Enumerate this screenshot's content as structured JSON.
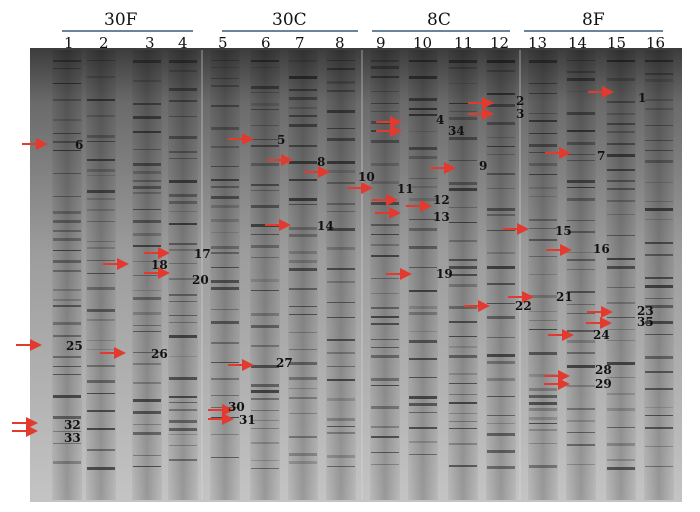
{
  "figure": {
    "groups": [
      {
        "label": "30F",
        "lanes": [
          "1",
          "2",
          "3",
          "4"
        ]
      },
      {
        "label": "30C",
        "lanes": [
          "5",
          "6",
          "7",
          "8"
        ]
      },
      {
        "label": "8C",
        "lanes": [
          "9",
          "10",
          "11",
          "12"
        ]
      },
      {
        "label": "8F",
        "lanes": [
          "13",
          "14",
          "15",
          "16"
        ]
      }
    ],
    "band_labels": [
      "1",
      "2",
      "3",
      "4",
      "5",
      "6",
      "7",
      "8",
      "9",
      "10",
      "11",
      "12",
      "13",
      "14",
      "15",
      "16",
      "17",
      "18",
      "19",
      "20",
      "21",
      "22",
      "23",
      "24",
      "25",
      "26",
      "27",
      "28",
      "29",
      "30",
      "31",
      "32",
      "33",
      "34",
      "35"
    ],
    "colors": {
      "gel_dark": "#4a4a4a",
      "gel_light": "#b5b5b5",
      "band": "#1a1a1a",
      "arrow": "#e23a2e",
      "divider": "#3a5a7a"
    }
  }
}
